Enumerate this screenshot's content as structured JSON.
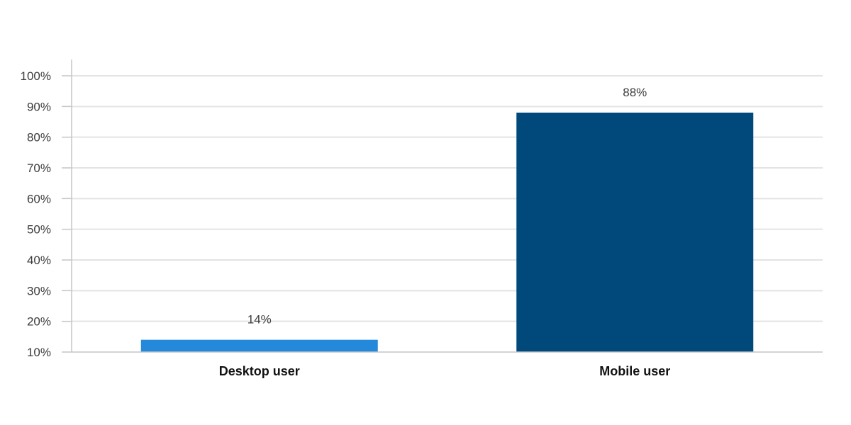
{
  "chart_data": {
    "type": "bar",
    "title": "",
    "xlabel": "",
    "ylabel": "",
    "categories": [
      "Desktop user",
      "Mobile user"
    ],
    "values": [
      14,
      88
    ],
    "data_labels": [
      "14%",
      "88%"
    ],
    "bar_colors": [
      "#2589db",
      "#00497a"
    ],
    "ylim": [
      10,
      100
    ],
    "yticks": [
      10,
      20,
      30,
      40,
      50,
      60,
      70,
      80,
      90,
      100
    ],
    "ytick_labels": [
      "10%",
      "20%",
      "30%",
      "40%",
      "50%",
      "60%",
      "70%",
      "80%",
      "90%",
      "100%"
    ],
    "grid": true,
    "legend": "none"
  }
}
